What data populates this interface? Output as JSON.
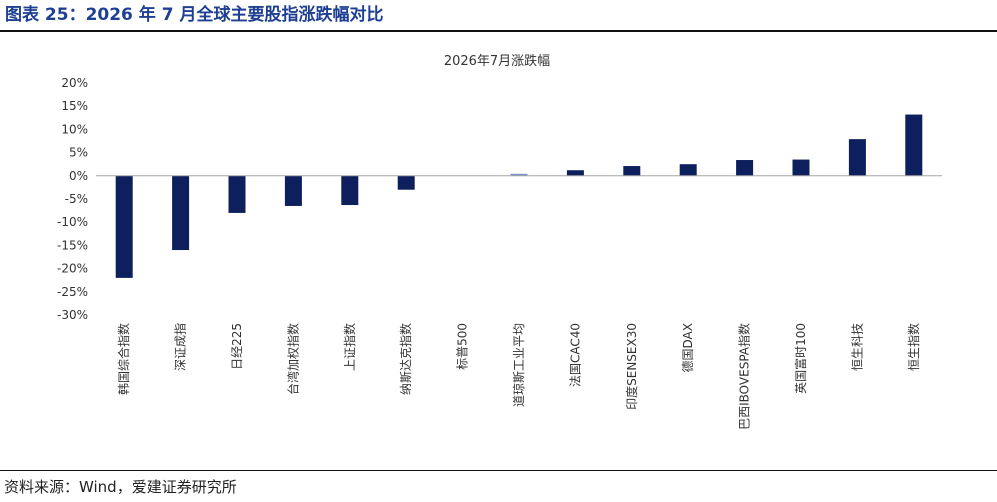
{
  "figure": {
    "title": "图表 25：2026 年 7 月全球主要股指涨跌幅对比",
    "source": "资料来源：Wind，爱建证券研究所"
  },
  "colors": {
    "title": "#1f3f93",
    "bar": "#0d1f5c",
    "axis": "#a6a6a6"
  },
  "chart_data": {
    "type": "bar",
    "title": "2026年7月涨跌幅",
    "categories": [
      "韩国综合指数",
      "深证成指",
      "日经225",
      "台湾加权指数",
      "上证指数",
      "纳斯达克指数",
      "标普500",
      "道琼斯工业平均",
      "法国CAC40",
      "印度SENSEX30",
      "德国DAX",
      "巴西IBOVESPA指数",
      "英国富时100",
      "恒生科技",
      "恒生指数"
    ],
    "values": [
      -22.0,
      -16.0,
      -8.0,
      -6.5,
      -6.3,
      -3.0,
      0.0,
      0.3,
      1.2,
      2.1,
      2.5,
      3.4,
      3.5,
      7.9,
      13.2
    ],
    "ylim": [
      -30,
      20
    ],
    "yticks": [
      "20%",
      "15%",
      "10%",
      "5%",
      "0%",
      "-5%",
      "-10%",
      "-15%",
      "-20%",
      "-25%",
      "-30%"
    ],
    "ytick_values": [
      20,
      15,
      10,
      5,
      0,
      -5,
      -10,
      -15,
      -20,
      -25,
      -30
    ],
    "grid": false,
    "legend": "none"
  }
}
